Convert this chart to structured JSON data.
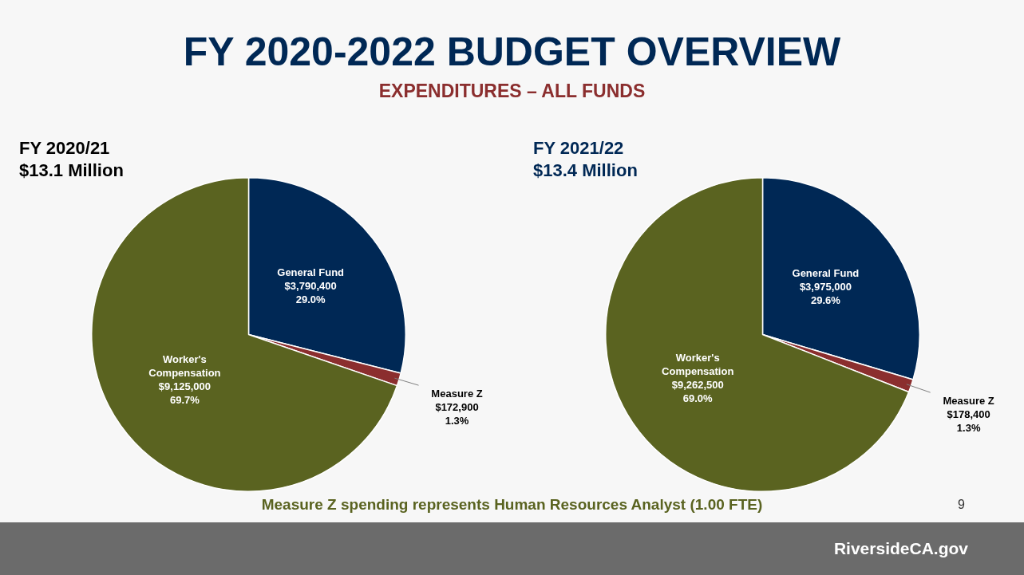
{
  "chart_data": [
    {
      "type": "other",
      "title": "FY 2020-2022 BUDGET OVERVIEW",
      "subtitle": "EXPENDITURES – ALL FUNDS",
      "annotations": [
        "Measure Z spending represents Human Resources Analyst (1.00 FTE)",
        "9",
        "RiversideCA.gov"
      ]
    },
    {
      "type": "pie",
      "title": "FY 2020/21",
      "subtitle": "$13.1 Million",
      "categories": [
        "General Fund",
        "Measure Z",
        "Worker's Compensation"
      ],
      "values": [
        3790400,
        172900,
        9125000
      ],
      "value_labels": [
        "$3,790,400\n29.0%",
        "$172,900\n1.3%",
        "$9,125,000\n69.7%"
      ],
      "colors": [
        "#002855",
        "#8b2e2e",
        "#5a6320"
      ],
      "legend": false
    },
    {
      "type": "pie",
      "title": "FY 2021/22",
      "subtitle": "$13.4 Million",
      "categories": [
        "General Fund",
        "Measure Z",
        "Worker's Compensation"
      ],
      "values": [
        3975000,
        178400,
        9262500
      ],
      "value_labels": [
        "$3,975,000\n29.6%",
        "$178,400\n1.3%",
        "$9,262,500\n69.0%"
      ],
      "colors": [
        "#002855",
        "#8b2e2e",
        "#5a6320"
      ],
      "legend": false
    }
  ]
}
